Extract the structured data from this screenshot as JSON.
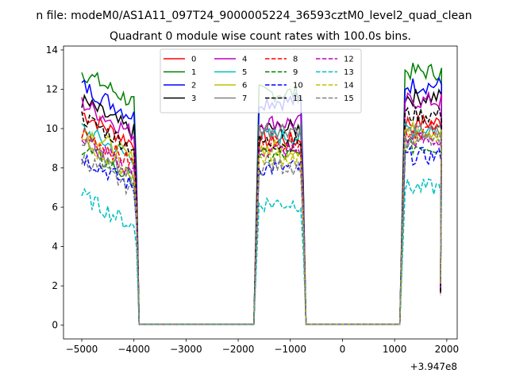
{
  "chart_data": {
    "type": "line",
    "suptitle": "n file: modeM0/AS1A11_097T24_9000005224_36593cztM0_level2_quad_clean",
    "title": "Quadrant 0 module wise count rates with 100.0s bins.",
    "xlabel": "",
    "ylabel": "",
    "x_offset_label": "+3.947e8",
    "xlim": [
      -5350,
      2200
    ],
    "ylim": [
      -0.7,
      14.2
    ],
    "xticks": [
      -5000,
      -4000,
      -3000,
      -2000,
      -1000,
      0,
      1000,
      2000
    ],
    "xtick_labels": [
      "−5000",
      "−4000",
      "−3000",
      "−2000",
      "−1000",
      "0",
      "1000",
      "2000"
    ],
    "yticks": [
      0,
      2,
      4,
      6,
      8,
      10,
      12,
      14
    ],
    "ytick_labels": [
      "0",
      "2",
      "4",
      "6",
      "8",
      "10",
      "12",
      "14"
    ],
    "grid": false,
    "legend_position": "top-center",
    "segments": [
      {
        "start": -5000,
        "end": -4000,
        "zero_until": -1800
      },
      {
        "start": -1600,
        "end": -800,
        "zero_until": 1100
      },
      {
        "start": 1200,
        "end": 1900,
        "zero_until": null
      }
    ],
    "series": [
      {
        "name": "0",
        "color": "#ff0000",
        "dash": "solid",
        "base": [
          10.8,
          9.4,
          10.3
        ]
      },
      {
        "name": "1",
        "color": "#008000",
        "dash": "solid",
        "base": [
          12.9,
          11.8,
          12.9
        ]
      },
      {
        "name": "2",
        "color": "#0000ff",
        "dash": "solid",
        "base": [
          12.2,
          11.4,
          12.2
        ]
      },
      {
        "name": "3",
        "color": "#000000",
        "dash": "solid",
        "base": [
          11.4,
          10.0,
          11.6
        ]
      },
      {
        "name": "4",
        "color": "#bf00bf",
        "dash": "solid",
        "base": [
          11.3,
          10.3,
          11.4
        ]
      },
      {
        "name": "5",
        "color": "#00bfbf",
        "dash": "solid",
        "base": [
          10.0,
          9.6,
          10.0
        ]
      },
      {
        "name": "6",
        "color": "#bfbf00",
        "dash": "solid",
        "base": [
          10.0,
          9.0,
          9.9
        ]
      },
      {
        "name": "7",
        "color": "#808080",
        "dash": "solid",
        "base": [
          9.2,
          10.0,
          9.8
        ]
      },
      {
        "name": "8",
        "color": "#ff0000",
        "dash": "dashed",
        "base": [
          9.8,
          9.3,
          9.9
        ]
      },
      {
        "name": "9",
        "color": "#008000",
        "dash": "dashed",
        "base": [
          9.0,
          8.6,
          9.1
        ]
      },
      {
        "name": "10",
        "color": "#0000ff",
        "dash": "dashed",
        "base": [
          8.6,
          8.0,
          8.6
        ]
      },
      {
        "name": "11",
        "color": "#000000",
        "dash": "dashed",
        "base": [
          10.6,
          9.3,
          10.7
        ]
      },
      {
        "name": "12",
        "color": "#bf00bf",
        "dash": "dashed",
        "base": [
          9.4,
          8.9,
          9.4
        ]
      },
      {
        "name": "13",
        "color": "#00bfbf",
        "dash": "dashed",
        "base": [
          6.6,
          6.2,
          7.0
        ]
      },
      {
        "name": "14",
        "color": "#bfbf00",
        "dash": "dashed",
        "base": [
          9.3,
          8.5,
          9.6
        ]
      },
      {
        "name": "15",
        "color": "#808080",
        "dash": "dashed",
        "base": [
          8.5,
          8.1,
          9.4
        ]
      }
    ]
  }
}
